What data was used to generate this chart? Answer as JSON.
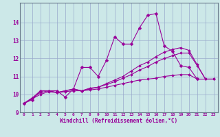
{
  "x": [
    0,
    1,
    2,
    3,
    4,
    5,
    6,
    7,
    8,
    9,
    10,
    11,
    12,
    13,
    14,
    15,
    16,
    17,
    18,
    19,
    20,
    21,
    22,
    23
  ],
  "line1": [
    9.5,
    9.7,
    10.2,
    10.2,
    10.2,
    9.85,
    10.3,
    11.5,
    11.5,
    11.0,
    11.9,
    13.2,
    12.8,
    12.8,
    13.7,
    14.4,
    14.5,
    12.7,
    12.4,
    11.6,
    11.5,
    10.85,
    null,
    null
  ],
  "line2": [
    9.5,
    9.8,
    10.2,
    10.2,
    10.1,
    10.2,
    10.3,
    10.2,
    10.35,
    10.4,
    10.6,
    10.8,
    11.0,
    11.3,
    11.6,
    11.8,
    12.1,
    12.35,
    12.5,
    12.6,
    12.45,
    11.65,
    10.85,
    10.85
  ],
  "line3": [
    9.5,
    9.8,
    10.1,
    10.2,
    10.1,
    10.2,
    10.3,
    10.2,
    10.3,
    10.4,
    10.55,
    10.7,
    10.9,
    11.1,
    11.35,
    11.55,
    11.8,
    12.0,
    12.15,
    12.3,
    12.3,
    11.6,
    10.85,
    10.85
  ],
  "line4": [
    9.5,
    9.75,
    10.0,
    10.15,
    10.1,
    10.15,
    10.2,
    10.2,
    10.25,
    10.3,
    10.4,
    10.5,
    10.6,
    10.7,
    10.8,
    10.85,
    10.9,
    11.0,
    11.05,
    11.1,
    11.1,
    10.85,
    10.85,
    10.85
  ],
  "xlim": [
    -0.5,
    23.5
  ],
  "ylim": [
    9.0,
    15.1
  ],
  "yticks": [
    9,
    10,
    11,
    12,
    13,
    14
  ],
  "bg_color": "#cce8e8",
  "line_color": "#990099",
  "grid_color": "#99aacc",
  "xlabel": "Windchill (Refroidissement éolien,°C)"
}
